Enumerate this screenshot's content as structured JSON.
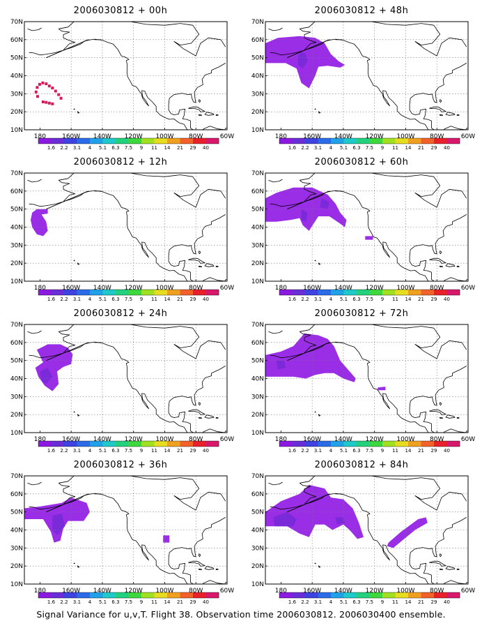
{
  "caption": "Signal Variance for u,v,T. Flight 38. Observation time 2006030812. 2006030400 ensemble.",
  "map_extent": {
    "lon": [
      -190,
      -60
    ],
    "lat": [
      10,
      70
    ]
  },
  "lat_ticks": [
    "10N",
    "20N",
    "30N",
    "40N",
    "50N",
    "60N",
    "70N"
  ],
  "lon_ticks": [
    "180",
    "160W",
    "140W",
    "120W",
    "100W",
    "80W",
    "60W"
  ],
  "colorbar": {
    "labels": [
      "1.6",
      "2.2",
      "3.1",
      "4",
      "5.1",
      "6.3",
      "7.5",
      "9",
      "11",
      "14",
      "21",
      "29",
      "40"
    ],
    "colors": [
      "#8a1ae0",
      "#6a2ed6",
      "#3d42e0",
      "#2a6be8",
      "#20a0e6",
      "#1fc9c9",
      "#22d07e",
      "#3ed83e",
      "#a0e020",
      "#e6dc20",
      "#f0a020",
      "#f0622a",
      "#e8202a",
      "#d8186a"
    ]
  },
  "shading_color": "#9a2ee6",
  "core_color": "#7a2ad8",
  "panels": [
    {
      "title": "2006030812 + 00h"
    },
    {
      "title": "2006030812 + 48h"
    },
    {
      "title": "2006030812 + 12h"
    },
    {
      "title": "2006030812 + 60h"
    },
    {
      "title": "2006030812 + 24h"
    },
    {
      "title": "2006030812 + 72h"
    },
    {
      "title": "2006030812 + 36h"
    },
    {
      "title": "2006030812 + 84h"
    }
  ]
}
